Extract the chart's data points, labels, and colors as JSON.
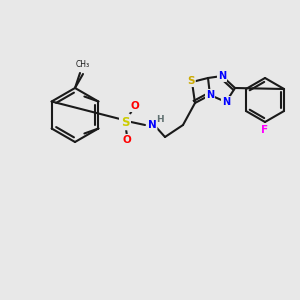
{
  "background_color": "#e8e8e8",
  "bond_color": "#1a1a1a",
  "bond_lw": 1.5,
  "atom_colors": {
    "S": "#cccc00",
    "N": "#0000ff",
    "O": "#ff0000",
    "F": "#ff00ff",
    "H": "#808080",
    "S2": "#ccaa00"
  },
  "font_size": 7.5,
  "font_size_small": 6.5
}
